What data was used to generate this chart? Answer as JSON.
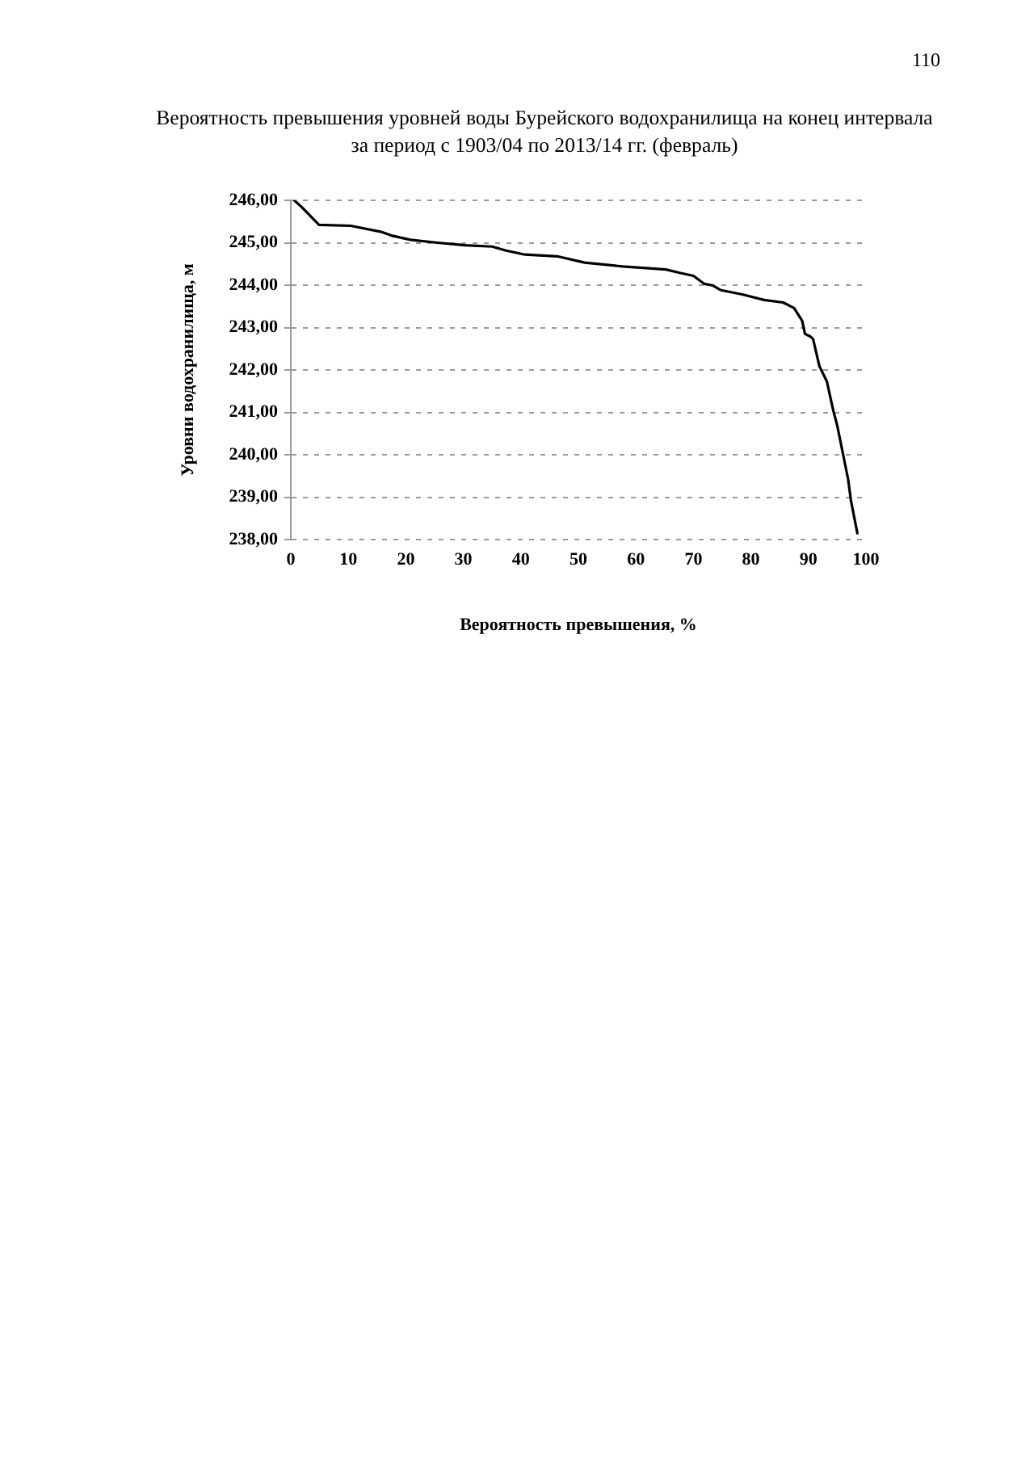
{
  "chart_data": {
    "type": "line",
    "title": "Вероятность превышения уровней воды Бурейского водохранилища на конец интервала\nза период с 1903/04 по 2013/14 гг. (февраль)",
    "xlabel": "Вероятность превышения, %",
    "ylabel": "Уровни водохранилища, м",
    "annotations": [
      "110"
    ],
    "x": [
      0.6,
      1.9,
      4.9,
      10.4,
      15.6,
      17.5,
      20.8,
      25.5,
      30.3,
      35.0,
      37.3,
      40.7,
      46.3,
      51.1,
      57.7,
      65.2,
      67.6,
      70.0,
      71.9,
      73.4,
      74.8,
      78.5,
      82.3,
      85.6,
      87.5,
      88.9,
      89.4,
      90.3,
      90.8,
      91.9,
      93.2,
      94.3,
      95.0,
      96.9,
      97.4,
      98.5
    ],
    "series": [
      {
        "color": "#000000",
        "values": [
          246.0,
          245.84,
          245.42,
          245.4,
          245.26,
          245.17,
          245.07,
          245.0,
          244.94,
          244.91,
          244.82,
          244.72,
          244.68,
          244.53,
          244.44,
          244.37,
          244.29,
          244.22,
          244.03,
          243.99,
          243.88,
          243.78,
          243.65,
          243.59,
          243.46,
          243.16,
          242.85,
          242.79,
          242.73,
          242.09,
          241.73,
          241.05,
          240.69,
          239.42,
          238.91,
          238.15
        ]
      }
    ],
    "xlim": [
      0,
      100
    ],
    "xticks": [
      0,
      10,
      20,
      30,
      40,
      50,
      60,
      70,
      80,
      90,
      100
    ],
    "ylim": [
      238,
      246
    ],
    "yticks": [
      {
        "value": 238,
        "label": "238,00"
      },
      {
        "value": 239,
        "label": "239,00"
      },
      {
        "value": 240,
        "label": "240,00"
      },
      {
        "value": 241,
        "label": "241,00"
      },
      {
        "value": 242,
        "label": "242,00"
      },
      {
        "value": 243,
        "label": "243,00"
      },
      {
        "value": 244,
        "label": "244,00"
      },
      {
        "value": 245,
        "label": "245,00"
      },
      {
        "value": 246,
        "label": "246,00"
      }
    ],
    "grid": "y",
    "marker": "none",
    "line_style": "solid"
  }
}
